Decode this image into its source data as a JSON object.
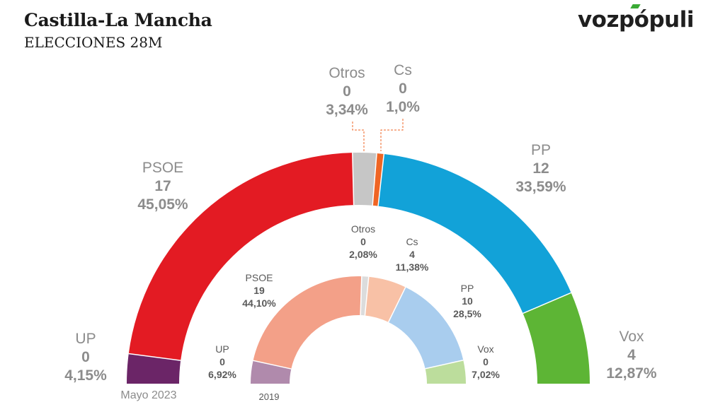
{
  "header": {
    "title": "Castilla-La Mancha",
    "subtitle": "ELECCIONES 28M",
    "logo": "vozpópuli"
  },
  "chart_data": {
    "type": "pie",
    "subtype": "semicircle-parliament",
    "charts": [
      {
        "id": "outer",
        "period_label": "Mayo 2023",
        "series": [
          {
            "name": "UP",
            "seats": "0",
            "pct": "4,15%",
            "value": 4.15,
            "color": "#6b2567"
          },
          {
            "name": "PSOE",
            "seats": "17",
            "pct": "45,05%",
            "value": 45.05,
            "color": "#e31b23"
          },
          {
            "name": "Otros",
            "seats": "0",
            "pct": "3,34%",
            "value": 3.34,
            "color": "#c6c6c6"
          },
          {
            "name": "Cs",
            "seats": "0",
            "pct": "1,0%",
            "value": 1.0,
            "color": "#ef6524"
          },
          {
            "name": "PP",
            "seats": "12",
            "pct": "33,59%",
            "value": 33.59,
            "color": "#12a2d8"
          },
          {
            "name": "Vox",
            "seats": "4",
            "pct": "12,87%",
            "value": 12.87,
            "color": "#5db535"
          }
        ]
      },
      {
        "id": "inner",
        "period_label": "2019",
        "series": [
          {
            "name": "UP",
            "seats": "0",
            "pct": "6,92%",
            "value": 6.92,
            "color": "#b08aac"
          },
          {
            "name": "PSOE",
            "seats": "19",
            "pct": "44,10%",
            "value": 44.1,
            "color": "#f3a088"
          },
          {
            "name": "Otros",
            "seats": "0",
            "pct": "2,08%",
            "value": 2.08,
            "color": "#dcdcdc"
          },
          {
            "name": "Cs",
            "seats": "4",
            "pct": "11,38%",
            "value": 11.38,
            "color": "#f8c1a6"
          },
          {
            "name": "PP",
            "seats": "10",
            "pct": "28,5%",
            "value": 28.5,
            "color": "#a9cdee"
          },
          {
            "name": "Vox",
            "seats": "0",
            "pct": "7,02%",
            "value": 7.02,
            "color": "#bcdd9c"
          }
        ]
      }
    ]
  }
}
